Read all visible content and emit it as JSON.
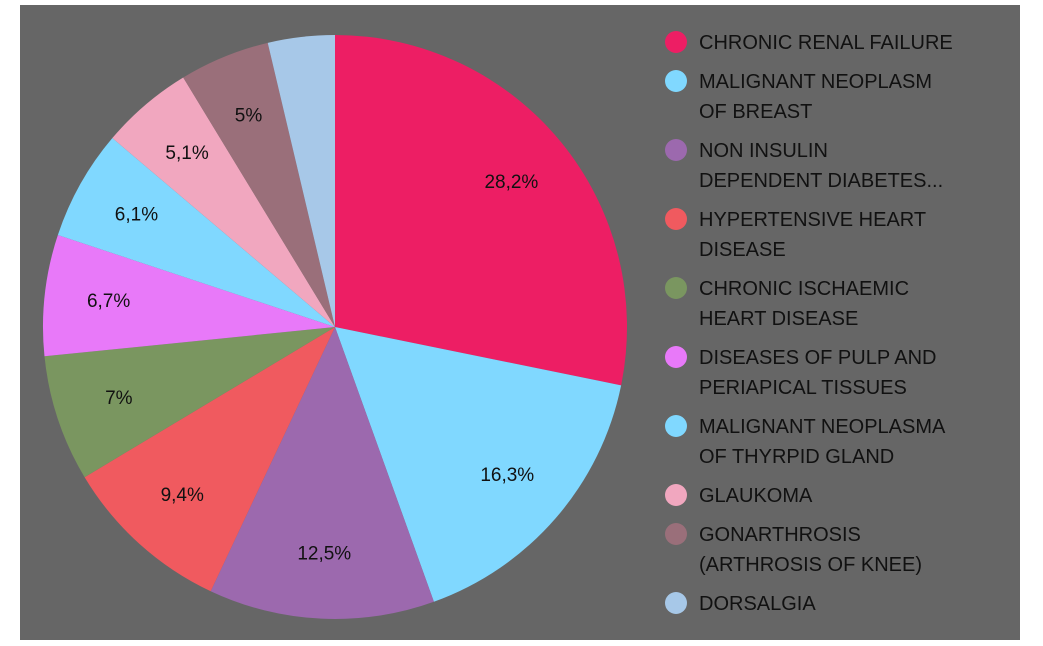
{
  "chart_data": {
    "type": "pie",
    "categories": [
      "CHRONIC RENAL FAILURE",
      "MALIGNANT NEOPLASM\nOF BREAST",
      "NON INSULIN\nDEPENDENT DIABETES...",
      "HYPERTENSIVE HEART\nDISEASE",
      "CHRONIC ISCHAEMIC\nHEART DISEASE",
      "DISEASES OF PULP AND\nPERIAPICAL TISSUES",
      "MALIGNANT NEOPLASMA\nOF THYRPID GLAND",
      "GLAUKOMA",
      "GONARTHROSIS\n(ARTHROSIS OF KNEE)",
      "DORSALGIA"
    ],
    "values": [
      28.2,
      16.3,
      12.5,
      9.4,
      7,
      6.7,
      6.1,
      5.1,
      5,
      3.7
    ],
    "value_labels": [
      "28,2%",
      "16,3%",
      "12,5%",
      "9,4%",
      "7%",
      "6,7%",
      "6,1%",
      "5,1%",
      "5%",
      null
    ],
    "colors": [
      "#ED1E64",
      "#80D8FF",
      "#9C69AE",
      "#F05A5F",
      "#7A9660",
      "#E879F9",
      "#80D8FF",
      "#F1A7BF",
      "#9A6F7A",
      "#A7C8E8"
    ],
    "legend": "right"
  }
}
